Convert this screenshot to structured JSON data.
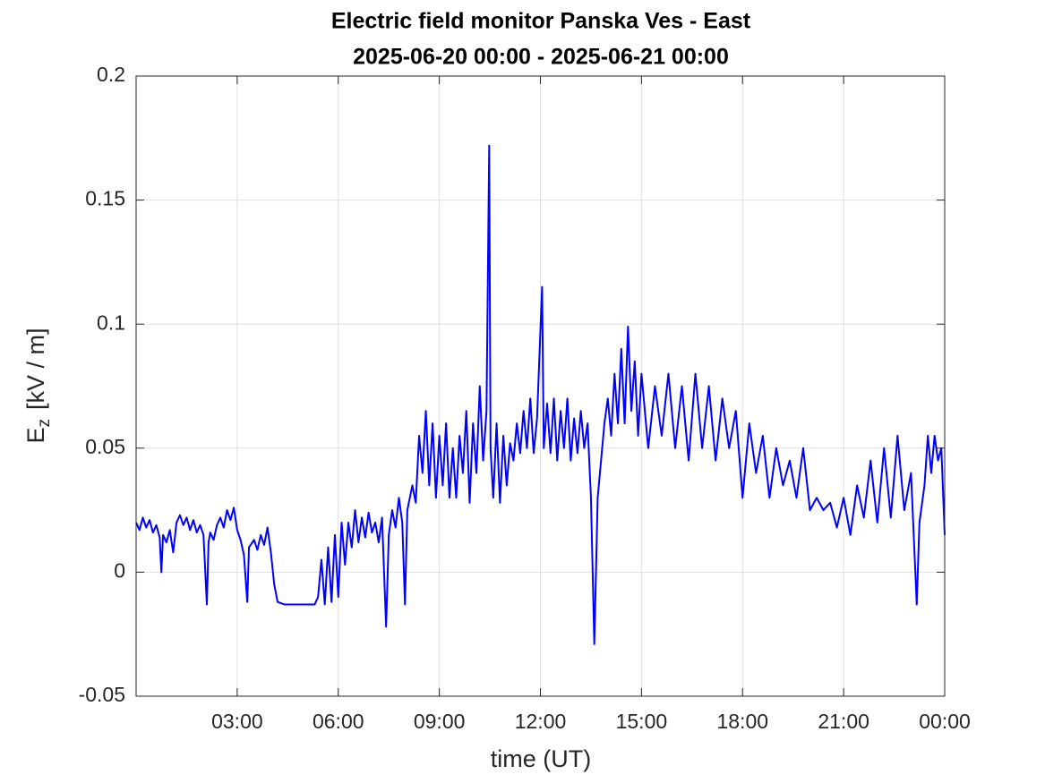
{
  "chart_data": {
    "type": "line",
    "title": "Electric field monitor Panska Ves - East",
    "subtitle": "2025-06-20 00:00 - 2025-06-21 00:00",
    "xlabel": "time (UT)",
    "ylabel": "E",
    "ylabel_subscript": "z",
    "ylabel_unit": "[kV / m]",
    "color": "#0000ff",
    "grid": true,
    "xlim": [
      0,
      24
    ],
    "xticks": [
      {
        "value": 3,
        "label": "03:00"
      },
      {
        "value": 6,
        "label": "06:00"
      },
      {
        "value": 9,
        "label": "09:00"
      },
      {
        "value": 12,
        "label": "12:00"
      },
      {
        "value": 15,
        "label": "15:00"
      },
      {
        "value": 18,
        "label": "18:00"
      },
      {
        "value": 21,
        "label": "21:00"
      },
      {
        "value": 24,
        "label": "00:00"
      }
    ],
    "ylim": [
      -0.05,
      0.2
    ],
    "yticks": [
      -0.05,
      0,
      0.05,
      0.1,
      0.15,
      0.2
    ],
    "x": [
      0,
      0.1,
      0.2,
      0.3,
      0.4,
      0.5,
      0.6,
      0.7,
      0.75,
      0.8,
      0.9,
      1.0,
      1.1,
      1.2,
      1.3,
      1.4,
      1.5,
      1.6,
      1.7,
      1.8,
      1.9,
      2.0,
      2.1,
      2.15,
      2.2,
      2.3,
      2.4,
      2.5,
      2.6,
      2.7,
      2.8,
      2.9,
      3.0,
      3.1,
      3.2,
      3.3,
      3.35,
      3.5,
      3.6,
      3.7,
      3.8,
      3.9,
      4.0,
      4.1,
      4.2,
      4.4,
      4.7,
      5.0,
      5.3,
      5.4,
      5.5,
      5.6,
      5.7,
      5.8,
      5.9,
      6.0,
      6.1,
      6.2,
      6.3,
      6.4,
      6.5,
      6.6,
      6.7,
      6.8,
      6.9,
      7.0,
      7.1,
      7.2,
      7.3,
      7.42,
      7.5,
      7.6,
      7.7,
      7.8,
      7.9,
      7.98,
      8.05,
      8.2,
      8.3,
      8.4,
      8.5,
      8.6,
      8.7,
      8.8,
      8.9,
      9.0,
      9.1,
      9.2,
      9.3,
      9.4,
      9.5,
      9.6,
      9.7,
      9.8,
      9.9,
      10.0,
      10.1,
      10.2,
      10.3,
      10.4,
      10.48,
      10.52,
      10.6,
      10.7,
      10.8,
      10.9,
      11.0,
      11.1,
      11.2,
      11.3,
      11.4,
      11.5,
      11.6,
      11.7,
      11.8,
      11.9,
      12.05,
      12.1,
      12.2,
      12.3,
      12.4,
      12.5,
      12.6,
      12.7,
      12.8,
      12.9,
      13.0,
      13.1,
      13.2,
      13.3,
      13.4,
      13.5,
      13.6,
      13.65,
      13.7,
      13.8,
      13.9,
      14.0,
      14.1,
      14.2,
      14.3,
      14.4,
      14.5,
      14.6,
      14.7,
      14.8,
      14.9,
      15.0,
      15.2,
      15.4,
      15.6,
      15.8,
      16.0,
      16.2,
      16.4,
      16.6,
      16.8,
      17.0,
      17.2,
      17.4,
      17.6,
      17.8,
      18.0,
      18.2,
      18.4,
      18.6,
      18.8,
      19.0,
      19.2,
      19.4,
      19.6,
      19.8,
      20.0,
      20.2,
      20.4,
      20.6,
      20.8,
      21.0,
      21.2,
      21.4,
      21.6,
      21.8,
      22.0,
      22.2,
      22.4,
      22.6,
      22.8,
      23.0,
      23.17,
      23.25,
      23.4,
      23.5,
      23.6,
      23.7,
      23.8,
      23.9,
      24.0
    ],
    "values": [
      0.02,
      0.017,
      0.022,
      0.018,
      0.021,
      0.016,
      0.019,
      0.014,
      0.0,
      0.015,
      0.012,
      0.017,
      0.008,
      0.02,
      0.023,
      0.019,
      0.022,
      0.017,
      0.021,
      0.016,
      0.019,
      0.015,
      -0.013,
      0.012,
      0.016,
      0.013,
      0.019,
      0.022,
      0.018,
      0.025,
      0.021,
      0.026,
      0.017,
      0.013,
      0.007,
      -0.012,
      0.01,
      0.013,
      0.009,
      0.015,
      0.011,
      0.018,
      0.008,
      -0.005,
      -0.012,
      -0.013,
      -0.013,
      -0.013,
      -0.013,
      -0.01,
      0.005,
      -0.013,
      0.01,
      -0.012,
      0.015,
      -0.01,
      0.02,
      0.003,
      0.02,
      0.01,
      0.025,
      0.012,
      0.022,
      0.014,
      0.024,
      0.016,
      0.02,
      0.012,
      0.022,
      -0.022,
      0.015,
      0.025,
      0.018,
      0.03,
      0.02,
      -0.013,
      0.025,
      0.035,
      0.028,
      0.055,
      0.04,
      0.065,
      0.035,
      0.06,
      0.03,
      0.055,
      0.035,
      0.06,
      0.03,
      0.05,
      0.03,
      0.055,
      0.04,
      0.065,
      0.028,
      0.06,
      0.04,
      0.075,
      0.045,
      0.065,
      0.172,
      0.05,
      0.03,
      0.06,
      0.028,
      0.055,
      0.035,
      0.052,
      0.045,
      0.06,
      0.048,
      0.065,
      0.05,
      0.07,
      0.048,
      0.062,
      0.115,
      0.05,
      0.068,
      0.048,
      0.07,
      0.045,
      0.065,
      0.05,
      0.07,
      0.045,
      0.062,
      0.048,
      0.065,
      0.05,
      0.06,
      0.03,
      -0.029,
      0.0,
      0.03,
      0.045,
      0.06,
      0.07,
      0.055,
      0.08,
      0.06,
      0.09,
      0.06,
      0.099,
      0.065,
      0.085,
      0.055,
      0.08,
      0.05,
      0.075,
      0.055,
      0.08,
      0.05,
      0.075,
      0.045,
      0.08,
      0.05,
      0.075,
      0.045,
      0.07,
      0.05,
      0.065,
      0.03,
      0.06,
      0.04,
      0.055,
      0.03,
      0.05,
      0.035,
      0.045,
      0.03,
      0.05,
      0.025,
      0.03,
      0.025,
      0.028,
      0.018,
      0.03,
      0.015,
      0.035,
      0.022,
      0.045,
      0.02,
      0.05,
      0.022,
      0.055,
      0.025,
      0.04,
      -0.013,
      0.02,
      0.035,
      0.055,
      0.04,
      0.055,
      0.045,
      0.05,
      0.015
    ]
  }
}
